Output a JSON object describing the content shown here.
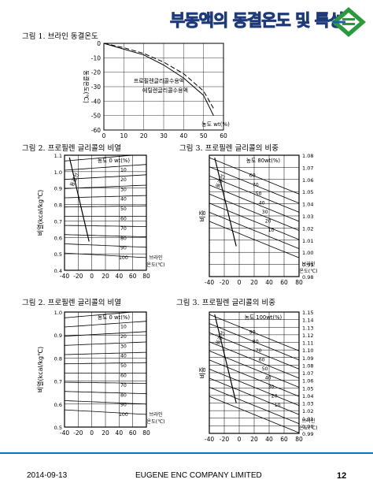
{
  "header": {
    "title": "부동액의 동결온도 및 특성"
  },
  "captions": {
    "fig1": "그림 1. 브라인 동결온도",
    "fig2a": "그림 2. 프로필렌 글리콜의 비열",
    "fig3a": "그림 3. 프로필렌 글리콜의 비중",
    "fig2b": "그림 2. 프로필렌 글리콜의 비열",
    "fig3b": "그림 3. 프로필렌 글리콜의 비중"
  },
  "footer": {
    "date": "2014-09-13",
    "company": "EUGENE ENC COMPANY LIMITED",
    "page": "12"
  },
  "colors": {
    "accent": "#0a77b5",
    "title_outline": "#1f3a78",
    "logo_green": "#2b9a3e"
  },
  "chart_data": [
    {
      "type": "line",
      "ylabel": "동결온도(℃)",
      "xlabel": "농도 wt(%)",
      "x_ticks": [
        0,
        10,
        20,
        30,
        40,
        50,
        60
      ],
      "y_ticks": [
        0,
        -10,
        -20,
        -30,
        -40,
        -50,
        -60
      ],
      "xlim": [
        0,
        60
      ],
      "ylim": [
        -60,
        0
      ],
      "series": [
        {
          "name": "프로필렌글리콜수용액",
          "x": [
            0,
            10,
            20,
            30,
            40,
            50,
            55
          ],
          "y": [
            0,
            -3,
            -7,
            -13,
            -21,
            -33,
            -45
          ]
        },
        {
          "name": "에틸렌글리콜수용액",
          "x": [
            0,
            10,
            20,
            30,
            40,
            50,
            55
          ],
          "y": [
            0,
            -4,
            -8,
            -15,
            -24,
            -36,
            -50
          ]
        }
      ]
    },
    {
      "type": "line",
      "ylabel": "비열(kcal/kg℃)",
      "xlabel": "브라인 온도(℃)",
      "x_ticks": [
        "-40",
        "-20",
        "0",
        "20",
        "40",
        "60",
        "80"
      ],
      "y_ticks": [
        "1.1",
        "1.0",
        "0.9",
        "0.8",
        "0.7",
        "0.6",
        "0.5",
        "0.4"
      ],
      "legend_title": "농도 0 wt(%)",
      "curve_labels": [
        "10",
        "20",
        "30",
        "40",
        "50",
        "60",
        "70",
        "80",
        "90",
        "100"
      ],
      "annotation": "동결선"
    },
    {
      "type": "line",
      "ylabel": "비중",
      "xlabel": "브라인 온도(℃)",
      "x_ticks": [
        "-40",
        "-20",
        "0",
        "20",
        "40",
        "60",
        "80"
      ],
      "y_ticks": [
        "1.08",
        "1.07",
        "1.06",
        "1.05",
        "1.04",
        "1.03",
        "1.02",
        "1.01",
        "1.00",
        "0.99",
        "0.98"
      ],
      "legend_title": "농도 80wt(%)",
      "curve_labels": [
        "60",
        "70",
        "50",
        "40",
        "30",
        "20",
        "10"
      ],
      "annotation": "동결선"
    },
    {
      "type": "line",
      "ylabel": "비열(kcal/kg℃)",
      "xlabel": "브라인 온도(℃)",
      "x_ticks": [
        "-40",
        "-20",
        "0",
        "20",
        "40",
        "60",
        "80"
      ],
      "y_ticks": [
        "1.0",
        "0.9",
        "0.8",
        "0.7",
        "0.6",
        "0.5"
      ],
      "legend_title": "농도 0 wt(%)",
      "curve_labels": [
        "10",
        "20",
        "30",
        "40",
        "50",
        "60",
        "70",
        "80",
        "90",
        "100"
      ]
    },
    {
      "type": "line",
      "ylabel": "비중",
      "xlabel": "브라인 온도(℃)",
      "x_ticks": [
        "-40",
        "-20",
        "0",
        "20",
        "40",
        "60",
        "80"
      ],
      "y_ticks": [
        "1.15",
        "1.14",
        "1.13",
        "1.12",
        "1.11",
        "1.10",
        "1.09",
        "1.08",
        "1.07",
        "1.06",
        "1.05",
        "1.04",
        "1.03",
        "1.02",
        "1.01",
        "1.00",
        "0.99"
      ],
      "legend_title": "농도 100wt(%)",
      "curve_labels": [
        "90",
        "80",
        "70",
        "60",
        "50",
        "40",
        "30",
        "20",
        "10"
      ],
      "annotation": "동결선"
    }
  ]
}
